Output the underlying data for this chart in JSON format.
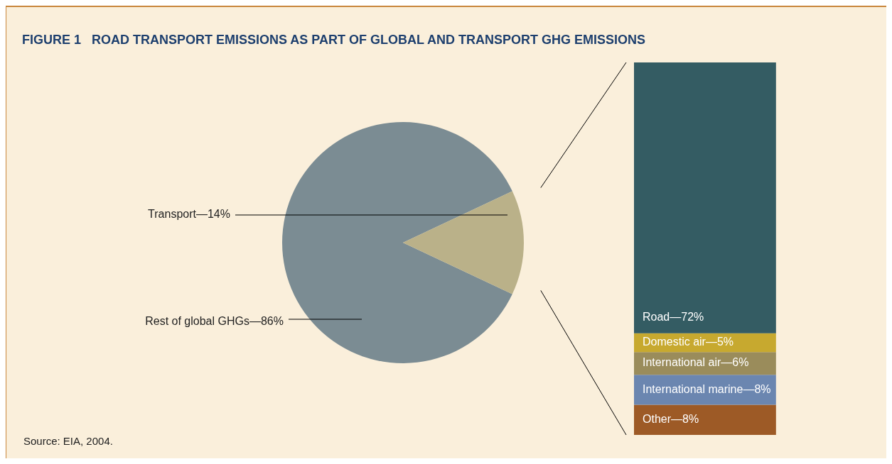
{
  "chart_data": [
    {
      "type": "pie",
      "title": "FIGURE 1   ROAD TRANSPORT EMISSIONS AS PART OF GLOBAL AND TRANSPORT GHG EMISSIONS",
      "annotations": [
        "Source: EIA, 2004."
      ],
      "categories": [
        "Rest of global GHGs",
        "Transport"
      ],
      "values": [
        86,
        14
      ],
      "colors": [
        "#7b8c93",
        "#bab189"
      ],
      "value_labels": [
        "—86%",
        "—14%"
      ]
    },
    {
      "type": "bar",
      "stacked": true,
      "categories": [
        null
      ],
      "series": [
        {
          "name": "Other",
          "color": "#9d5a26",
          "values": [
            8
          ],
          "value_labels": [
            "—8%"
          ]
        },
        {
          "name": "International marine",
          "color": "#6b86b0",
          "values": [
            8
          ],
          "value_labels": [
            "—8%"
          ]
        },
        {
          "name": "International air",
          "color": "#9a8c5b",
          "values": [
            6
          ],
          "value_labels": [
            "—6%"
          ]
        },
        {
          "name": "Domestic air",
          "color": "#c7a92f",
          "values": [
            5
          ],
          "value_labels": [
            "—5%"
          ]
        },
        {
          "name": "Road",
          "color": "#345c63",
          "values": [
            72
          ],
          "value_labels": [
            "—72%"
          ]
        }
      ]
    }
  ]
}
